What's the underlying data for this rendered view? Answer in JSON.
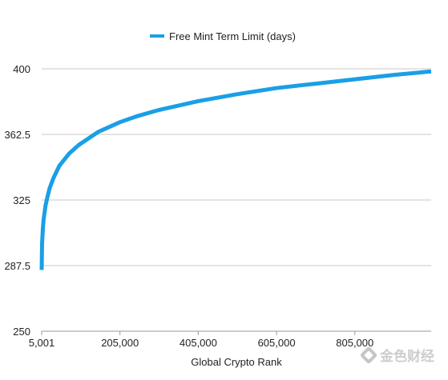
{
  "chart_data": {
    "type": "line",
    "title": "",
    "xlabel": "Global Crypto Rank",
    "ylabel": "",
    "legend": {
      "position": "top-center",
      "entries": [
        "Free Mint Term Limit (days)"
      ]
    },
    "ylim": [
      250,
      400
    ],
    "xlim": [
      5001,
      1000000
    ],
    "y_ticks": [
      "250",
      "287.5",
      "325",
      "362.5",
      "400"
    ],
    "x_ticks": [
      "5,001",
      "205,000",
      "405,000",
      "605,000",
      "805,000"
    ],
    "x_tick_values": [
      5001,
      205000,
      405000,
      605000,
      805000
    ],
    "y_tick_values": [
      250,
      287.5,
      325,
      362.5,
      400
    ],
    "grid": "horizontal",
    "series": [
      {
        "name": "Free Mint Term Limit (days)",
        "color": "#1a9fe6",
        "x": [
          5001,
          6000,
          8000,
          10000,
          15000,
          20000,
          25000,
          35000,
          50000,
          75000,
          100000,
          150000,
          205000,
          250000,
          305000,
          405000,
          505000,
          605000,
          705000,
          805000,
          905000,
          1000000
        ],
        "y": [
          285,
          300,
          308.5,
          314,
          322,
          327,
          331.5,
          337.5,
          344.5,
          351.5,
          356.5,
          364,
          369.5,
          373,
          376.5,
          381.5,
          385.5,
          389,
          391.5,
          394,
          396.5,
          398.5
        ]
      }
    ]
  },
  "watermark": {
    "text": "金色财经",
    "icon": "gold-diamond-icon",
    "color": "#9e9e9e"
  }
}
